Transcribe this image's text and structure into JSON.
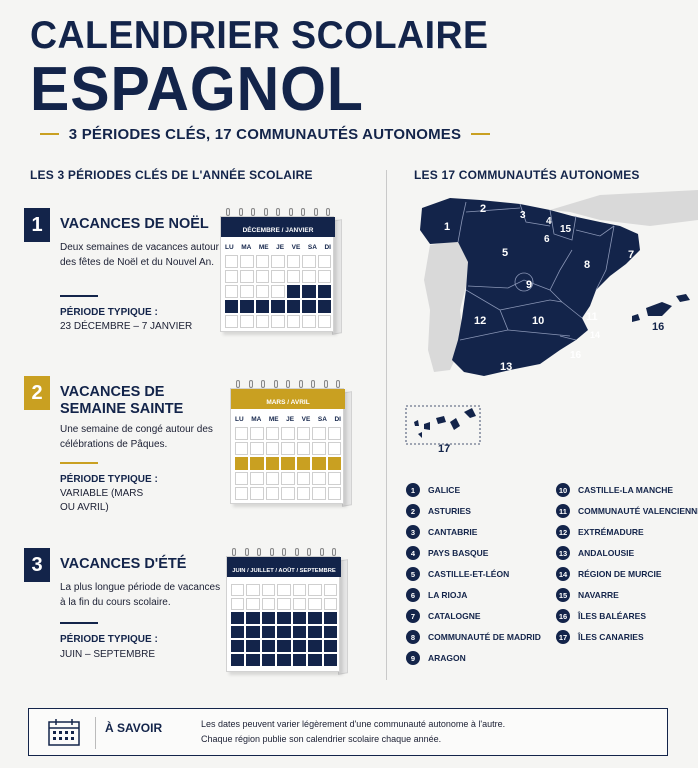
{
  "header": {
    "title_line1": "CALENDRIER SCOLAIRE",
    "title_line2": "ESPAGNOL",
    "subtitle": "3 PÉRIODES CLÉS, 17 COMMUNAUTÉS AUTONOMES"
  },
  "left_section": {
    "heading": "LES 3 PÉRIODES CLÉS DE L'ANNÉE SCOLAIRE",
    "periods": [
      {
        "number": "1",
        "title": "VACANCES DE NOËL",
        "description": "Deux semaines de vacances autour des fêtes de Noël et du Nouvel An.",
        "label": "PÉRIODE TYPIQUE :",
        "value": "23 DÉCEMBRE – 7 JANVIER",
        "calendar_header": "DÉCEMBRE / JANVIER",
        "accent": "#13244a"
      },
      {
        "number": "2",
        "title": "VACANCES DE SEMAINE SAINTE",
        "description": "Une semaine de congé autour des célébrations de Pâques.",
        "label": "PÉRIODE TYPIQUE :",
        "value": "VARIABLE (MARS OU AVRIL)",
        "calendar_header": "MARS / AVRIL",
        "accent": "#c9a021"
      },
      {
        "number": "3",
        "title": "VACANCES D'ÉTÉ",
        "description": "La plus longue période de vacances à la fin du cours scolaire.",
        "label": "PÉRIODE TYPIQUE :",
        "value": "JUIN – SEPTEMBRE",
        "calendar_header": "JUIN / JUILLET / AOÛT / SEPTEMBRE",
        "accent": "#13244a"
      }
    ],
    "weekdays": [
      "LU",
      "MA",
      "ME",
      "JE",
      "VE",
      "SA",
      "DI"
    ]
  },
  "right_section": {
    "heading": "LES 17 COMMUNAUTÉS AUTONOMES",
    "communities": [
      {
        "n": "1",
        "name": "GALICE"
      },
      {
        "n": "2",
        "name": "ASTURIES"
      },
      {
        "n": "3",
        "name": "CANTABRIE"
      },
      {
        "n": "4",
        "name": "PAYS BASQUE"
      },
      {
        "n": "5",
        "name": "CASTILLE-ET-LÉON"
      },
      {
        "n": "6",
        "name": "LA RIOJA"
      },
      {
        "n": "7",
        "name": "CATALOGNE"
      },
      {
        "n": "8",
        "name": "COMMUNAUTÉ DE MADRID"
      },
      {
        "n": "9",
        "name": "ARAGON"
      },
      {
        "n": "10",
        "name": "CASTILLE-LA MANCHE"
      },
      {
        "n": "11",
        "name": "COMMUNAUTÉ VALENCIENNE"
      },
      {
        "n": "12",
        "name": "EXTRÉMADURE"
      },
      {
        "n": "13",
        "name": "ANDALOUSIE"
      },
      {
        "n": "14",
        "name": "RÉGION DE MURCIE"
      },
      {
        "n": "15",
        "name": "NAVARRE"
      },
      {
        "n": "16",
        "name": "ÎLES BALÉARES"
      },
      {
        "n": "17",
        "name": "ÎLES CANARIES"
      }
    ]
  },
  "info": {
    "title": "À SAVOIR",
    "line1": "Les dates peuvent varier légèrement d'une communauté autonome à l'autre.",
    "line2": "Chaque région publie son calendrier scolaire chaque année."
  },
  "colors": {
    "navy": "#13244a",
    "gold": "#c9a021",
    "grey_land": "#d9d9d9"
  }
}
